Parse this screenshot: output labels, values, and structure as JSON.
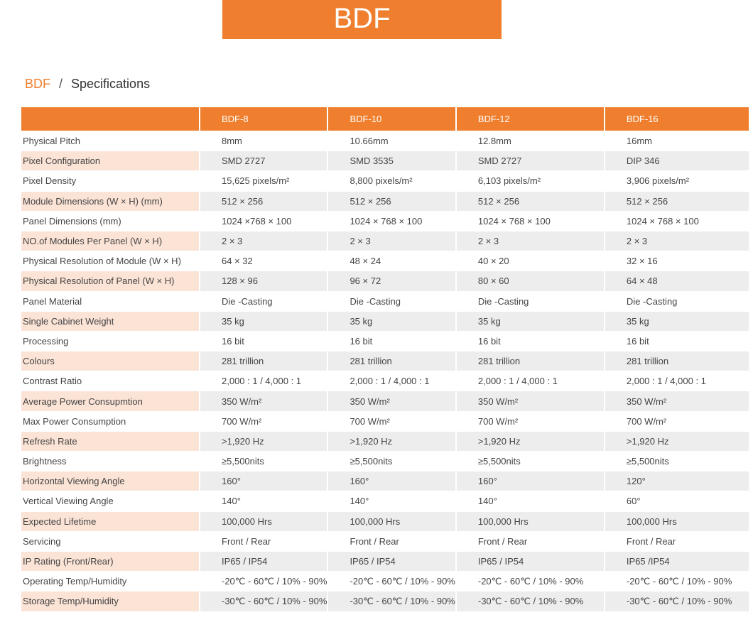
{
  "header": {
    "title": "BDF"
  },
  "breadcrumb": {
    "parent": "BDF",
    "separator": "/",
    "current": "Specifications"
  },
  "table": {
    "columns": [
      "BDF-8",
      "BDF-10",
      "BDF-12",
      "BDF-16"
    ],
    "rows": [
      [
        "Physical Pitch",
        "8mm",
        "10.66mm",
        "12.8mm",
        "16mm"
      ],
      [
        "Pixel Configuration",
        "SMD 2727",
        "SMD 3535",
        "SMD 2727",
        "DIP 346"
      ],
      [
        "Pixel Density",
        "15,625 pixels/m²",
        "8,800 pixels/m²",
        "6,103 pixels/m²",
        "3,906 pixels/m²"
      ],
      [
        "Module Dimensions (W × H) (mm)",
        "512 × 256",
        "512 × 256",
        "512 × 256",
        "512 × 256"
      ],
      [
        "Panel Dimensions (mm)",
        "1024 ×768 × 100",
        "1024 × 768 × 100",
        "1024 × 768 × 100",
        "1024 × 768 × 100"
      ],
      [
        "NO.of Modules Per Panel (W × H)",
        "2 × 3",
        "2 × 3",
        "2 × 3",
        "2 × 3"
      ],
      [
        "Physical Resolution of Module (W × H)",
        "64 × 32",
        "48 × 24",
        "40 × 20",
        "32 × 16"
      ],
      [
        "Physical Resolution of Panel (W × H)",
        "128 × 96",
        "96 × 72",
        "80 × 60",
        "64 × 48"
      ],
      [
        "Panel Material",
        "Die -Casting",
        "Die -Casting",
        "Die -Casting",
        "Die -Casting"
      ],
      [
        "Single Cabinet Weight",
        "35 kg",
        "35 kg",
        "35 kg",
        "35 kg"
      ],
      [
        "Processing",
        "16 bit",
        "16 bit",
        "16 bit",
        "16 bit"
      ],
      [
        "Colours",
        "281 trillion",
        "281 trillion",
        "281 trillion",
        "281 trillion"
      ],
      [
        "Contrast Ratio",
        "2,000 : 1 / 4,000 : 1",
        "2,000 : 1 / 4,000 : 1",
        "2,000 : 1 / 4,000 : 1",
        "2,000 : 1 / 4,000 : 1"
      ],
      [
        "Average Power Consupmtion",
        "350 W/m²",
        "350 W/m²",
        "350 W/m²",
        "350 W/m²"
      ],
      [
        "Max Power Consumption",
        "700 W/m²",
        "700 W/m²",
        "700 W/m²",
        "700 W/m²"
      ],
      [
        "Refresh Rate",
        ">1,920 Hz",
        ">1,920 Hz",
        ">1,920 Hz",
        ">1,920 Hz"
      ],
      [
        "Brightness",
        "≥5,500nits",
        "≥5,500nits",
        "≥5,500nits",
        "≥5,500nits"
      ],
      [
        "Horizontal Viewing Angle",
        "160°",
        "160°",
        "160°",
        "120°"
      ],
      [
        "Vertical Viewing Angle",
        "140°",
        "140°",
        "140°",
        "60°"
      ],
      [
        "Expected Lifetime",
        "100,000 Hrs",
        "100,000 Hrs",
        "100,000 Hrs",
        "100,000 Hrs"
      ],
      [
        "Servicing",
        "Front / Rear",
        "Front / Rear",
        "Front / Rear",
        "Front / Rear"
      ],
      [
        "IP Rating (Front/Rear)",
        "IP65 / IP54",
        "IP65 / IP54",
        "IP65 / IP54",
        "IP65 /IP54"
      ],
      [
        "Operating Temp/Humidity",
        "-20℃ - 60℃ / 10% - 90%",
        "-20℃ - 60℃ / 10% - 90%",
        "-20℃ - 60℃ / 10% - 90%",
        "-20℃ - 60℃ / 10% - 90%"
      ],
      [
        "Storage Temp/Humidity",
        "-30℃ - 60℃ / 10% - 90%",
        "-30℃ - 60℃ / 10% - 90%",
        "-30℃ - 60℃ / 10% - 90%",
        "-30℃ - 60℃ / 10% - 90%"
      ]
    ]
  }
}
